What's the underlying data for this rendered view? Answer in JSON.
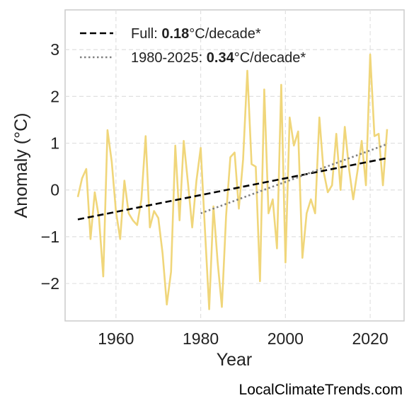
{
  "chart_data": {
    "type": "line",
    "xlabel": "Year",
    "ylabel": "Anomaly (°C)",
    "xlim": [
      1948,
      2028
    ],
    "ylim": [
      -2.8,
      3.85
    ],
    "xticks": [
      1960,
      1980,
      2000,
      2020
    ],
    "yticks": [
      -2,
      -1,
      0,
      1,
      2,
      3
    ],
    "ytick_labels": [
      "−2",
      "−1",
      "0",
      "1",
      "2",
      "3"
    ],
    "grid": true,
    "legend_position": "top-left",
    "series": [
      {
        "color": "#f0d67a",
        "x": [
          1951,
          1952,
          1953,
          1954,
          1955,
          1956,
          1957,
          1958,
          1959,
          1960,
          1961,
          1962,
          1963,
          1964,
          1965,
          1966,
          1967,
          1968,
          1969,
          1970,
          1971,
          1972,
          1973,
          1974,
          1975,
          1976,
          1977,
          1978,
          1979,
          1980,
          1981,
          1982,
          1983,
          1984,
          1985,
          1986,
          1987,
          1988,
          1989,
          1990,
          1991,
          1992,
          1993,
          1994,
          1995,
          1996,
          1997,
          1998,
          1999,
          2000,
          2001,
          2002,
          2003,
          2004,
          2005,
          2006,
          2007,
          2008,
          2009,
          2010,
          2011,
          2012,
          2013,
          2014,
          2015,
          2016,
          2017,
          2018,
          2019,
          2020,
          2021,
          2022,
          2023,
          2024
        ],
        "y": [
          -0.15,
          0.25,
          0.45,
          -1.05,
          -0.05,
          -0.6,
          -1.85,
          1.28,
          0.6,
          -0.45,
          -1.05,
          0.2,
          -0.5,
          -0.65,
          -0.75,
          -0.2,
          1.15,
          -0.8,
          -0.45,
          -0.6,
          -1.35,
          -2.45,
          -1.75,
          0.95,
          -0.65,
          1.05,
          0.15,
          -0.8,
          0.2,
          0.9,
          -0.85,
          -2.55,
          -0.35,
          -1.55,
          -2.5,
          -0.55,
          0.7,
          0.8,
          -0.4,
          0.65,
          2.55,
          0.55,
          0.5,
          -1.95,
          2.15,
          -0.5,
          -0.2,
          -1.25,
          2.25,
          -1.55,
          1.55,
          0.95,
          1.25,
          -1.45,
          -0.5,
          -0.2,
          -0.5,
          1.55,
          0.4,
          -0.05,
          0.1,
          1.2,
          0.0,
          1.35,
          0.45,
          -0.2,
          0.4,
          1.05,
          0.1,
          2.9,
          1.15,
          1.2,
          0.1,
          1.3
        ]
      },
      {
        "name": "Full",
        "style": "dashed",
        "color": "#000000",
        "x": [
          1951,
          2024
        ],
        "y": [
          -0.63,
          0.68
        ]
      },
      {
        "name": "1980-2025",
        "style": "dotted",
        "color": "#808080",
        "x": [
          1980,
          2024
        ],
        "y": [
          -0.5,
          0.98
        ]
      }
    ]
  },
  "legend": {
    "full_prefix": "Full: ",
    "full_value": "0.18",
    "full_suffix": "°C/decade*",
    "recent_prefix": "1980-2025: ",
    "recent_value": "0.34",
    "recent_suffix": "°C/decade*"
  },
  "credit": "LocalClimateTrends.com"
}
